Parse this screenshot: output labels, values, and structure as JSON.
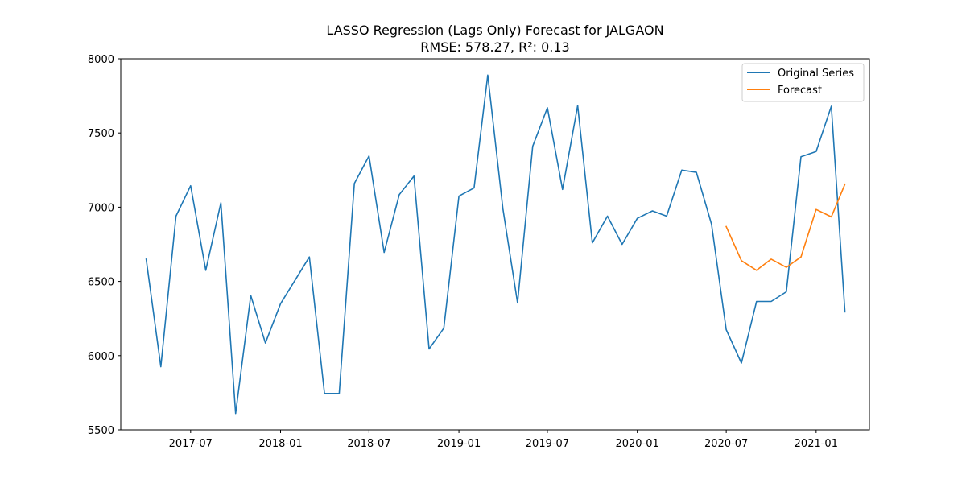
{
  "chart_data": {
    "type": "line",
    "title": "LASSO Regression (Lags Only) Forecast for JALGAON",
    "subtitle": "RMSE: 578.27, R²: 0.13",
    "xlabel": "",
    "ylabel": "",
    "ylim": [
      5500,
      8000
    ],
    "xlim": [
      "2017-02-08",
      "2021-04-20"
    ],
    "grid": false,
    "legend_position": "upper right",
    "y_ticks": [
      5500,
      6000,
      6500,
      7000,
      7500,
      8000
    ],
    "x_ticks": [
      {
        "date": "2017-07-01",
        "label": "2017-07"
      },
      {
        "date": "2018-01-01",
        "label": "2018-01"
      },
      {
        "date": "2018-07-01",
        "label": "2018-07"
      },
      {
        "date": "2019-01-01",
        "label": "2019-01"
      },
      {
        "date": "2019-07-01",
        "label": "2019-07"
      },
      {
        "date": "2020-01-01",
        "label": "2020-01"
      },
      {
        "date": "2020-07-01",
        "label": "2020-07"
      },
      {
        "date": "2021-01-01",
        "label": "2021-01"
      }
    ],
    "series": [
      {
        "name": "Original Series",
        "color": "#1f77b4",
        "x": [
          "2017-04-01",
          "2017-05-01",
          "2017-06-01",
          "2017-07-01",
          "2017-08-01",
          "2017-09-01",
          "2017-10-01",
          "2017-11-01",
          "2017-12-01",
          "2018-01-01",
          "2018-02-01",
          "2018-03-01",
          "2018-04-01",
          "2018-05-01",
          "2018-06-01",
          "2018-07-01",
          "2018-08-01",
          "2018-09-01",
          "2018-10-01",
          "2018-11-01",
          "2018-12-01",
          "2019-01-01",
          "2019-02-01",
          "2019-03-01",
          "2019-04-01",
          "2019-05-01",
          "2019-06-01",
          "2019-07-01",
          "2019-08-01",
          "2019-09-01",
          "2019-10-01",
          "2019-11-01",
          "2019-12-01",
          "2020-01-01",
          "2020-02-01",
          "2020-03-01",
          "2020-04-01",
          "2020-05-01",
          "2020-06-01",
          "2020-07-01",
          "2020-08-01",
          "2020-09-01",
          "2020-10-01",
          "2020-11-01",
          "2020-12-01",
          "2021-01-01",
          "2021-02-01",
          "2021-03-01"
        ],
        "values": [
          6650,
          5925,
          6940,
          7145,
          6575,
          7030,
          5610,
          6405,
          6085,
          6350,
          6515,
          6665,
          5745,
          5745,
          7160,
          7345,
          6695,
          7085,
          7210,
          6045,
          6185,
          7075,
          7130,
          7890,
          6990,
          6355,
          7410,
          7670,
          7120,
          7685,
          6760,
          6940,
          6750,
          6925,
          6975,
          6940,
          7250,
          7235,
          6885,
          6175,
          5950,
          6365,
          6365,
          6430,
          7340,
          7375,
          7680,
          6295
        ]
      },
      {
        "name": "Forecast",
        "color": "#ff7f0e",
        "x": [
          "2020-07-01",
          "2020-08-01",
          "2020-09-01",
          "2020-10-01",
          "2020-11-01",
          "2020-12-01",
          "2021-01-01",
          "2021-02-01",
          "2021-03-01"
        ],
        "values": [
          6870,
          6640,
          6575,
          6650,
          6595,
          6665,
          6985,
          6935,
          7155
        ]
      }
    ]
  }
}
